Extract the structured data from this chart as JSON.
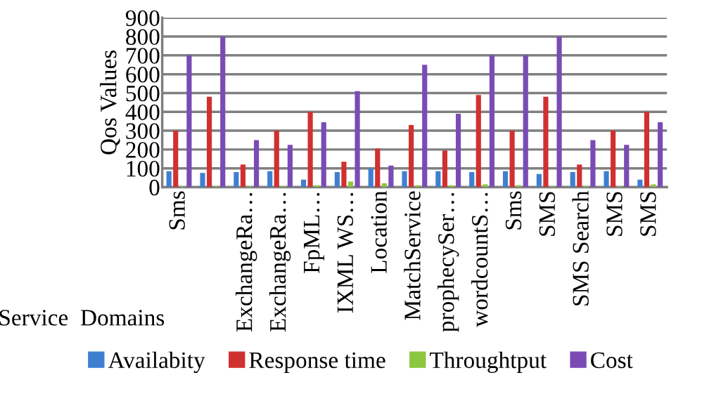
{
  "chart_data": {
    "type": "bar",
    "ylabel": "Qos Values",
    "xlabel": "Service  Domains",
    "categories": [
      "Sms",
      null,
      "ExchangeRa…",
      "ExchangeRa…",
      "FpML…",
      "IXML WS…",
      "Location",
      "MatchService",
      "prophecySer…",
      "wordcountS…",
      "Sms",
      "SMS",
      "SMS Search",
      "SMS",
      "SMS"
    ],
    "series": [
      {
        "name": "Availabity",
        "color": "#3f7fd0",
        "values": [
          85,
          75,
          80,
          85,
          40,
          80,
          100,
          85,
          85,
          80,
          85,
          70,
          80,
          85,
          40
        ]
      },
      {
        "name": "Response time",
        "color": "#d13030",
        "values": [
          300,
          480,
          120,
          300,
          400,
          135,
          205,
          330,
          195,
          490,
          300,
          480,
          120,
          300,
          400
        ]
      },
      {
        "name": "Throughtput",
        "color": "#8dc63f",
        "values": [
          5,
          5,
          5,
          5,
          10,
          30,
          20,
          10,
          10,
          15,
          10,
          5,
          5,
          5,
          15
        ]
      },
      {
        "name": "Cost",
        "color": "#7a4bb5",
        "values": [
          700,
          800,
          250,
          225,
          345,
          510,
          115,
          650,
          390,
          700,
          700,
          800,
          250,
          225,
          345
        ]
      }
    ],
    "ylim": [
      0,
      900
    ],
    "yticks": [
      0,
      100,
      200,
      300,
      400,
      500,
      600,
      700,
      800,
      900
    ],
    "grid": "y",
    "legend": "bottom"
  }
}
